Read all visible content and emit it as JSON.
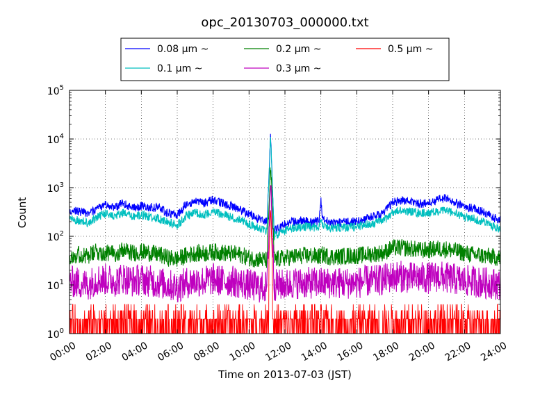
{
  "chart_data": {
    "type": "line",
    "title": "opc_20130703_000000.txt",
    "xlabel": "Time on 2013-07-03 (JST)",
    "ylabel": "Count",
    "xlim_hours": [
      0,
      24
    ],
    "ylim": [
      1,
      100000
    ],
    "yscale": "log",
    "grid": true,
    "legend_position": "top",
    "x_tick_labels": [
      "00:00",
      "02:00",
      "04:00",
      "06:00",
      "08:00",
      "10:00",
      "12:00",
      "14:00",
      "16:00",
      "18:00",
      "20:00",
      "22:00",
      "24:00"
    ],
    "y_tick_labels": [
      {
        "value": 1,
        "base": "10",
        "exp": "0"
      },
      {
        "value": 10,
        "base": "10",
        "exp": "1"
      },
      {
        "value": 100,
        "base": "10",
        "exp": "2"
      },
      {
        "value": 1000,
        "base": "10",
        "exp": "3"
      },
      {
        "value": 10000,
        "base": "10",
        "exp": "4"
      },
      {
        "value": 100000,
        "base": "10",
        "exp": "5"
      }
    ],
    "x": [
      0,
      0.5,
      1,
      1.5,
      2,
      2.5,
      3,
      3.5,
      4,
      4.5,
      5,
      5.5,
      6,
      6.5,
      7,
      7.5,
      8,
      8.5,
      9,
      9.5,
      10,
      10.5,
      11,
      11.2,
      11.4,
      11.6,
      12,
      12.5,
      13,
      13.5,
      13.9,
      14,
      14.1,
      14.5,
      15,
      15.5,
      16,
      16.5,
      17,
      17.5,
      18,
      18.5,
      19,
      19.5,
      20,
      20.5,
      21,
      21.5,
      22,
      22.5,
      23,
      23.5,
      24
    ],
    "series": [
      {
        "name": "0.08 μm ~",
        "color": "#0000ff",
        "values": [
          350,
          330,
          290,
          360,
          460,
          400,
          480,
          380,
          420,
          400,
          380,
          300,
          270,
          460,
          520,
          480,
          560,
          480,
          420,
          360,
          290,
          230,
          200,
          12000,
          130,
          140,
          180,
          200,
          210,
          190,
          210,
          550,
          230,
          190,
          190,
          200,
          200,
          230,
          260,
          300,
          500,
          550,
          520,
          470,
          480,
          560,
          620,
          480,
          400,
          380,
          320,
          250,
          210
        ]
      },
      {
        "name": "0.1 μm ~",
        "color": "#00bfbf",
        "values": [
          240,
          210,
          190,
          240,
          300,
          260,
          300,
          250,
          280,
          250,
          230,
          190,
          170,
          260,
          300,
          280,
          320,
          280,
          250,
          220,
          180,
          150,
          130,
          12000,
          100,
          110,
          130,
          150,
          160,
          150,
          160,
          260,
          170,
          150,
          150,
          150,
          160,
          170,
          190,
          210,
          310,
          340,
          320,
          300,
          300,
          320,
          340,
          290,
          250,
          230,
          200,
          170,
          140
        ]
      },
      {
        "name": "0.2 μm ~",
        "color": "#008000",
        "values": [
          40,
          42,
          38,
          48,
          45,
          44,
          52,
          45,
          48,
          45,
          42,
          36,
          34,
          40,
          45,
          44,
          48,
          46,
          44,
          42,
          36,
          34,
          32,
          3000,
          34,
          34,
          36,
          38,
          40,
          40,
          38,
          40,
          42,
          38,
          38,
          40,
          40,
          42,
          44,
          46,
          58,
          58,
          56,
          52,
          52,
          56,
          54,
          50,
          45,
          42,
          40,
          38,
          36
        ]
      },
      {
        "name": "0.3 μm ~",
        "color": "#bf00bf",
        "values": [
          12,
          11,
          10,
          13,
          13,
          12,
          14,
          12,
          13,
          12,
          11,
          10,
          9,
          11,
          12,
          12,
          13,
          12,
          12,
          11,
          10,
          9,
          9,
          1500,
          10,
          10,
          10,
          11,
          11,
          11,
          11,
          11,
          11,
          11,
          11,
          11,
          11,
          12,
          12,
          13,
          15,
          15,
          14,
          14,
          14,
          15,
          14,
          13,
          12,
          12,
          11,
          11,
          10
        ]
      },
      {
        "name": "0.5 μm ~",
        "color": "#ff0000",
        "values": [
          2,
          2,
          2,
          2,
          2,
          2,
          2,
          2,
          2,
          2,
          2,
          2,
          2,
          2,
          2,
          2,
          2,
          2,
          2,
          2,
          2,
          2,
          2,
          400,
          2,
          2,
          2,
          2,
          2,
          2,
          2,
          2,
          2,
          2,
          2,
          2,
          2,
          2,
          2,
          2,
          2,
          2,
          2,
          2,
          2,
          2,
          2,
          2,
          2,
          2,
          2,
          2,
          2
        ]
      }
    ]
  }
}
